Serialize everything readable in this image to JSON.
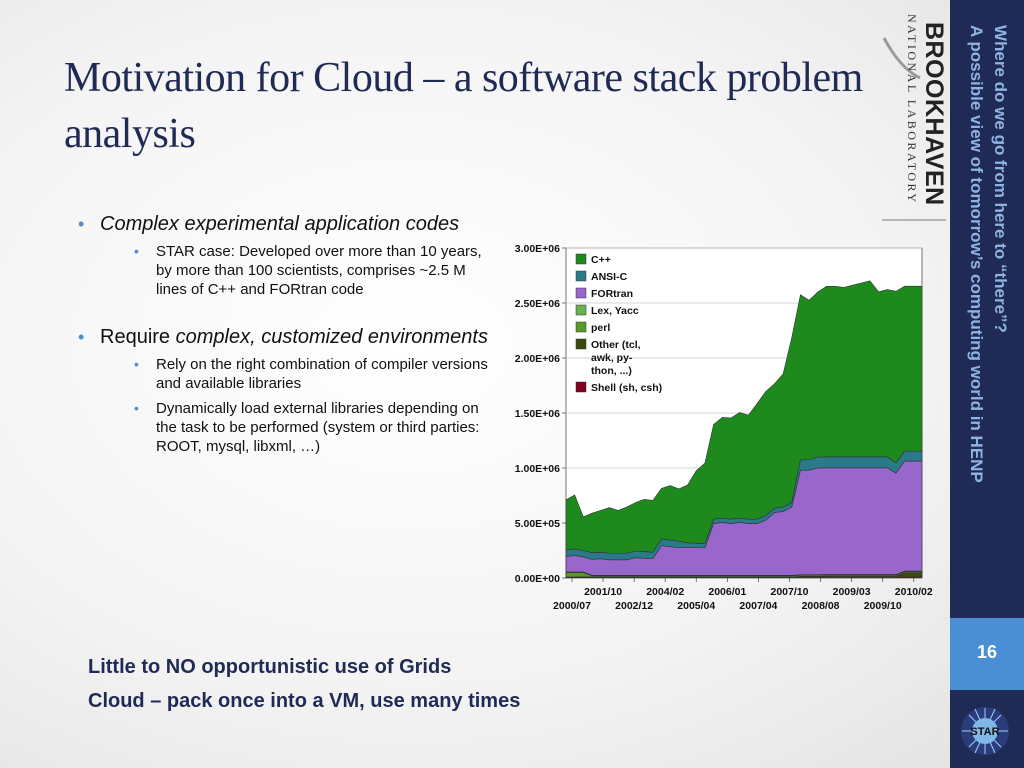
{
  "slide": {
    "title": "Motivation for Cloud – a software stack problem analysis",
    "bullets": {
      "b1": "Complex experimental application codes",
      "b1_sub": "STAR case: Developed over more than 10 years, by more than 100 scientists, comprises ~2.5 M lines of C++ and FORtran code",
      "b2_plain": "Require ",
      "b2_italic": "complex, customized environments",
      "b2_sub1": "Rely on the right combination of compiler versions and available libraries",
      "b2_sub2": "Dynamically load external libraries depending on the task to be performed (system or third parties: ROOT, mysql, libxml, …)"
    },
    "takeaway_1": "Little to NO opportunistic use of Grids",
    "takeaway_2": "Cloud – pack once into a VM, use many times",
    "sidebar_line1": "Where do we go from here to “there”?",
    "sidebar_line2": "A possible view of tomorrow’s computing world in HENP",
    "page_number": "16",
    "logo_text_1": "BROOKHAVEN",
    "logo_text_2": "NATIONAL LABORATORY",
    "star_logo_text": "STAR"
  },
  "chart_data": {
    "type": "area",
    "stacked": true,
    "x_tick_labels_top": [
      "2001/10",
      "2004/02",
      "2006/01",
      "2007/10",
      "2009/03",
      "2010/02"
    ],
    "x_tick_labels_bottom": [
      "2000/07",
      "2002/12",
      "2005/04",
      "2007/04",
      "2008/08",
      "2009/10"
    ],
    "y_tick_labels": [
      "0.00E+00",
      "5.00E+05",
      "1.00E+06",
      "1.50E+06",
      "2.00E+06",
      "2.50E+06",
      "3.00E+06"
    ],
    "ylim": [
      0,
      3000000
    ],
    "grid": true,
    "legend_position": "top-left",
    "series": [
      {
        "name": "Shell (sh, csh)",
        "color": "#800020",
        "values": [
          5000,
          5000,
          5000,
          5000,
          5000,
          5000,
          5000,
          5000,
          5000,
          5000,
          5000,
          5000,
          5000,
          5000,
          5000,
          5000,
          5000,
          5000,
          5000,
          5000,
          5000,
          5000,
          5000,
          5000,
          5000,
          5000,
          5000,
          5000,
          5000,
          5000,
          5000,
          5000,
          5000,
          5000,
          5000,
          5000,
          5000,
          5000,
          5000,
          8000,
          8000,
          8000
        ]
      },
      {
        "name": "Other (tcl, awk, py-thon, ...)",
        "color": "#3a4a10",
        "values": [
          5000,
          5000,
          5000,
          5000,
          5000,
          5000,
          5000,
          5000,
          5000,
          5000,
          5000,
          5000,
          5000,
          5000,
          5000,
          5000,
          5000,
          5000,
          5000,
          5000,
          5000,
          5000,
          5000,
          5000,
          5000,
          5000,
          5000,
          10000,
          10000,
          10000,
          12000,
          12000,
          12000,
          12000,
          12000,
          12000,
          12000,
          12000,
          12000,
          40000,
          40000,
          40000
        ]
      },
      {
        "name": "perl",
        "color": "#5a9a2a",
        "values": [
          40000,
          40000,
          40000,
          10000,
          10000,
          10000,
          10000,
          10000,
          10000,
          10000,
          10000,
          10000,
          10000,
          10000,
          10000,
          10000,
          10000,
          10000,
          10000,
          10000,
          10000,
          10000,
          10000,
          10000,
          10000,
          10000,
          10000,
          10000,
          10000,
          10000,
          10000,
          10000,
          10000,
          10000,
          10000,
          10000,
          10000,
          10000,
          10000,
          10000,
          10000,
          10000
        ]
      },
      {
        "name": "Lex, Yacc",
        "color": "#6ab04c",
        "values": [
          5000,
          5000,
          5000,
          5000,
          5000,
          5000,
          5000,
          5000,
          5000,
          5000,
          5000,
          5000,
          5000,
          5000,
          5000,
          5000,
          5000,
          5000,
          5000,
          5000,
          5000,
          5000,
          5000,
          5000,
          5000,
          5000,
          5000,
          5000,
          5000,
          5000,
          5000,
          5000,
          5000,
          5000,
          5000,
          5000,
          5000,
          5000,
          5000,
          5000,
          5000,
          5000
        ]
      },
      {
        "name": "FORtran",
        "color": "#9966cc",
        "values": [
          140000,
          150000,
          135000,
          145000,
          150000,
          140000,
          140000,
          140000,
          160000,
          155000,
          150000,
          270000,
          260000,
          250000,
          255000,
          250000,
          250000,
          470000,
          480000,
          470000,
          480000,
          470000,
          470000,
          500000,
          570000,
          580000,
          620000,
          950000,
          950000,
          970000,
          970000,
          970000,
          970000,
          970000,
          970000,
          970000,
          970000,
          970000,
          920000,
          1000000,
          1000000,
          1000000
        ]
      },
      {
        "name": "ANSI-C",
        "color": "#2a7a8a",
        "values": [
          60000,
          60000,
          60000,
          60000,
          60000,
          60000,
          60000,
          60000,
          60000,
          60000,
          60000,
          60000,
          60000,
          60000,
          40000,
          40000,
          40000,
          40000,
          40000,
          40000,
          40000,
          40000,
          40000,
          40000,
          40000,
          40000,
          40000,
          95000,
          95000,
          100000,
          100000,
          100000,
          100000,
          100000,
          100000,
          100000,
          100000,
          100000,
          95000,
          90000,
          90000,
          90000
        ]
      },
      {
        "name": "C++",
        "color": "#1e8a1e",
        "values": [
          455000,
          490000,
          305000,
          360000,
          380000,
          415000,
          390000,
          420000,
          440000,
          475000,
          470000,
          460000,
          495000,
          475000,
          525000,
          660000,
          730000,
          860000,
          915000,
          920000,
          960000,
          945000,
          1050000,
          1130000,
          1130000,
          1210000,
          1500000,
          1500000,
          1450000,
          1500000,
          1550000,
          1550000,
          1540000,
          1560000,
          1580000,
          1600000,
          1500000,
          1520000,
          1560000,
          1500000,
          1500000,
          1500000
        ]
      }
    ]
  }
}
